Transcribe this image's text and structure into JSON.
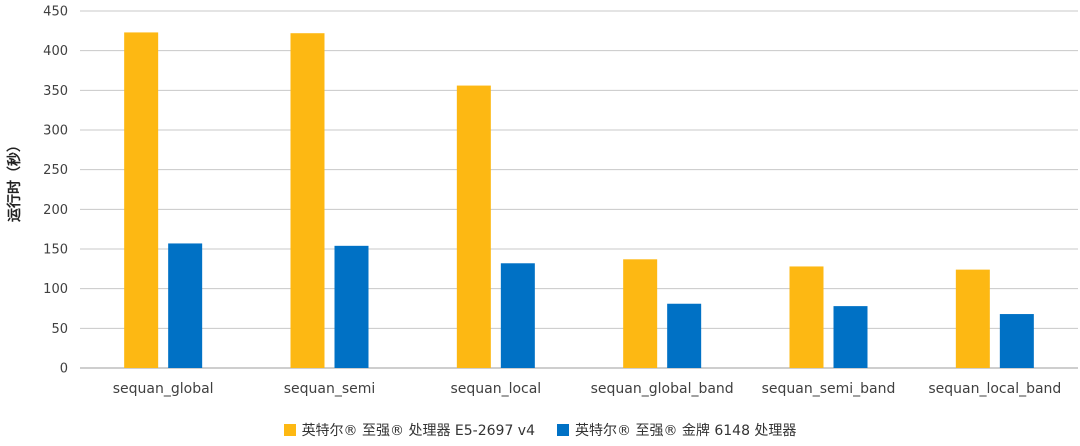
{
  "chart_data": {
    "type": "bar",
    "ylabel": "运行时（秒）",
    "xlabel": "",
    "ylim": [
      0,
      450
    ],
    "yticks": [
      0,
      50,
      100,
      150,
      200,
      250,
      300,
      350,
      400,
      450
    ],
    "grid": true,
    "legend_position": "bottom",
    "categories": [
      "sequan_global",
      "sequan_semi",
      "sequan_local",
      "sequan_global_band",
      "sequan_semi_band",
      "sequan_local_band"
    ],
    "series": [
      {
        "name": "英特尔® 至强® 处理器 E5-2697 v4",
        "color": "#FDB813",
        "values": [
          423,
          422,
          356,
          137,
          128,
          124
        ]
      },
      {
        "name": "英特尔® 至强® 金牌 6148 处理器",
        "color": "#0071C5",
        "values": [
          157,
          154,
          132,
          81,
          78,
          68
        ]
      }
    ]
  }
}
